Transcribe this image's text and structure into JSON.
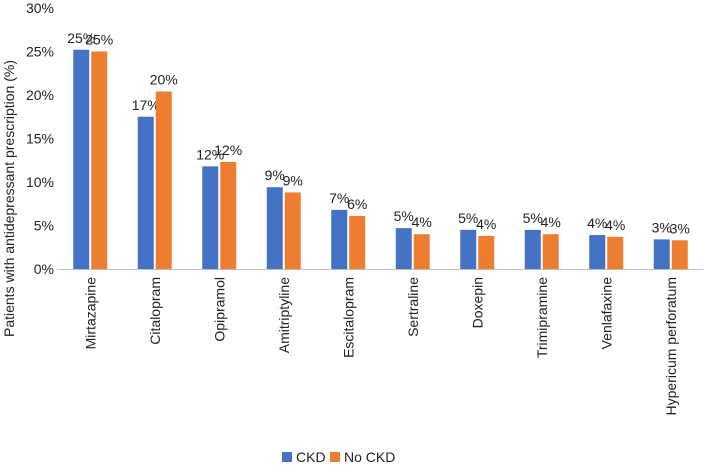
{
  "chart_data": {
    "type": "bar",
    "title": "",
    "xlabel": "",
    "ylabel": "Patients with antidepressant prescription (%)",
    "ylim": [
      0,
      30
    ],
    "yticks": [
      "0%",
      "5%",
      "10%",
      "15%",
      "20%",
      "25%",
      "30%"
    ],
    "grid": false,
    "legend_position": "bottom",
    "categories": [
      "Mirtazapine",
      "Citalopram",
      "Opipramol",
      "Amitriptyline",
      "Escitalopram",
      "Sertraline",
      "Doxepin",
      "Trimipramine",
      "Venlafaxine",
      "Hypericum perforatum"
    ],
    "series": [
      {
        "name": "CKD",
        "color": "#4472C4",
        "values": [
          25.2,
          17.5,
          11.8,
          9.4,
          6.8,
          4.7,
          4.5,
          4.5,
          3.9,
          3.4
        ],
        "labels": [
          "25%",
          "17%",
          "12%",
          "9%",
          "7%",
          "5%",
          "5%",
          "5%",
          "4%",
          "3%"
        ]
      },
      {
        "name": "No CKD",
        "color": "#ED7D31",
        "values": [
          25.0,
          20.4,
          12.3,
          8.8,
          6.1,
          4.0,
          3.8,
          4.0,
          3.7,
          3.3
        ],
        "labels": [
          "25%",
          "20%",
          "12%",
          "9%",
          "6%",
          "4%",
          "4%",
          "4%",
          "4%",
          "3%"
        ]
      }
    ]
  }
}
